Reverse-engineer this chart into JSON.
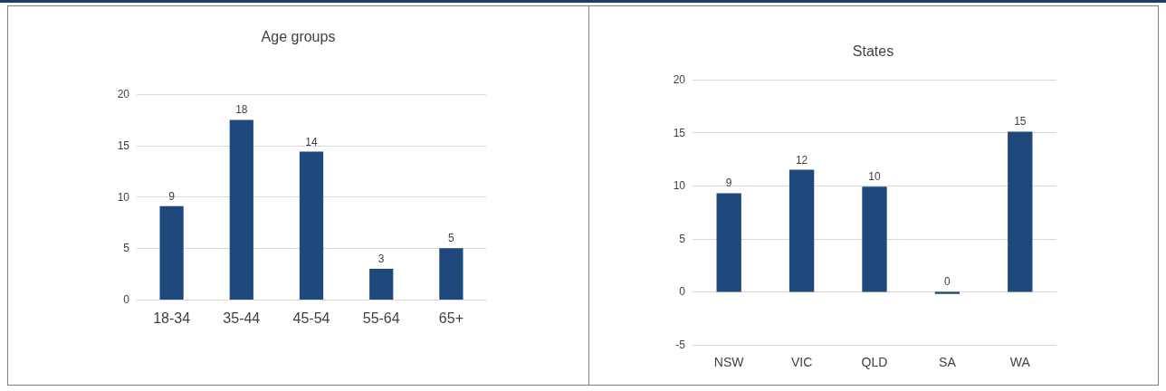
{
  "chart_data": [
    {
      "type": "bar",
      "title": "Age groups",
      "categories": [
        "18-34",
        "35-44",
        "45-54",
        "55-64",
        "65+"
      ],
      "values": [
        9.1,
        17.5,
        14.4,
        3,
        5
      ],
      "value_labels": [
        "9",
        "18",
        "14",
        "3",
        "5"
      ],
      "color": "#1f497d",
      "ylim": [
        0,
        20
      ],
      "yticks": [
        0,
        5,
        10,
        15,
        20
      ],
      "grid": "y"
    },
    {
      "type": "bar",
      "title": "States",
      "categories": [
        "NSW",
        "VIC",
        "QLD",
        "SA",
        "WA"
      ],
      "values": [
        9.3,
        11.5,
        9.9,
        -0.2,
        15.1
      ],
      "value_labels": [
        "9",
        "12",
        "10",
        "0",
        "15"
      ],
      "color": "#1f497d",
      "ylim": [
        -5,
        20
      ],
      "yticks": [
        -5,
        0,
        5,
        10,
        15,
        20
      ],
      "grid": "y"
    }
  ]
}
